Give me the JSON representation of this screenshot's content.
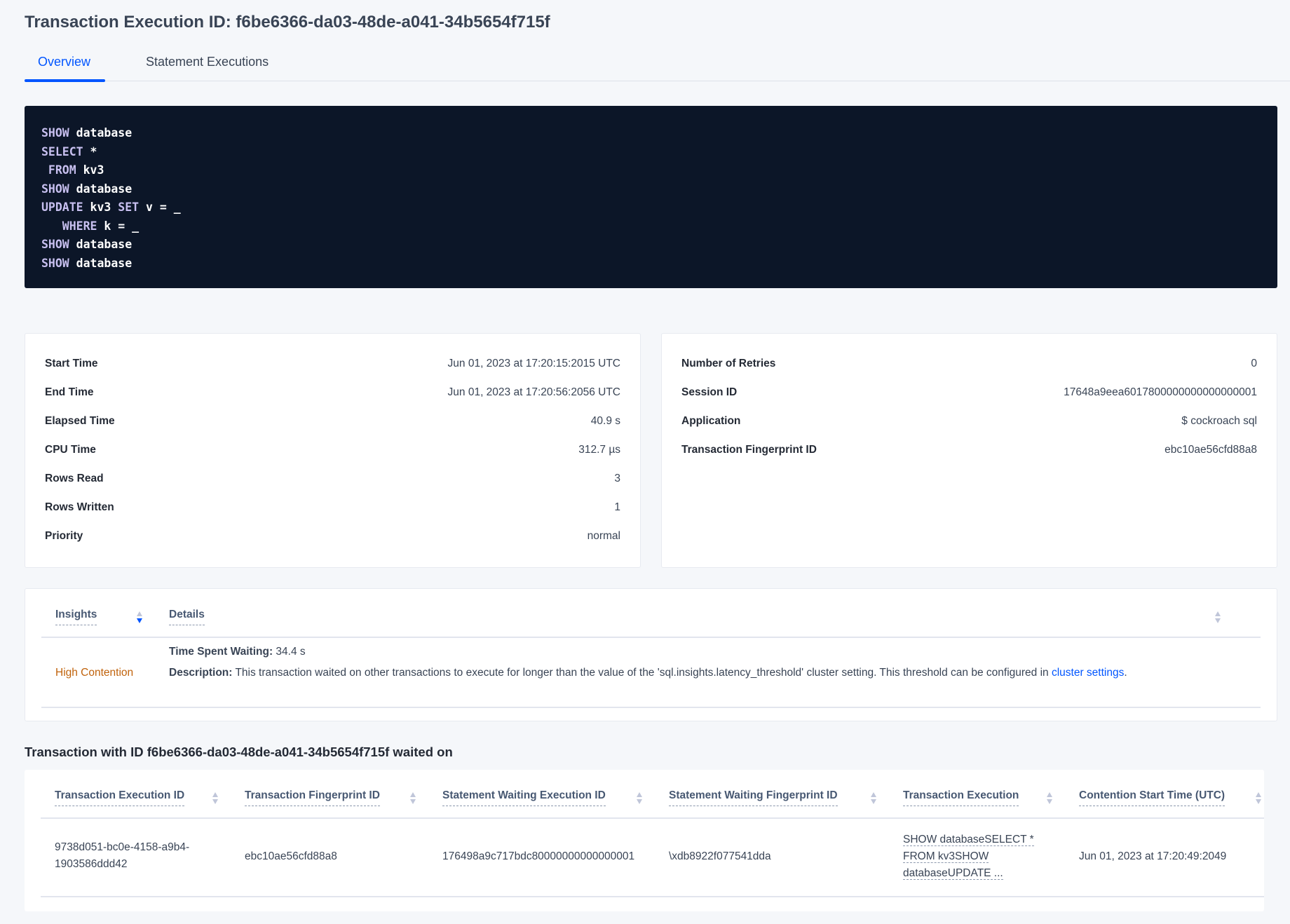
{
  "header": {
    "title": "Transaction Execution ID: f6be6366-da03-48de-a041-34b5654f715f"
  },
  "tabs": [
    {
      "label": "Overview",
      "active": true
    },
    {
      "label": "Statement Executions",
      "active": false
    }
  ],
  "sql": [
    {
      "kw": "SHOW",
      "rest": " database"
    },
    {
      "kw": "SELECT",
      "rest": " *"
    },
    {
      "kw": " FROM",
      "rest": " kv3"
    },
    {
      "kw": "SHOW",
      "rest": " database"
    },
    {
      "kw": "UPDATE",
      "rest": " kv3 ",
      "kw2": "SET",
      "rest2": " v = _"
    },
    {
      "kw": "   WHERE",
      "rest": " k = _"
    },
    {
      "kw": "SHOW",
      "rest": " database"
    },
    {
      "kw": "SHOW",
      "rest": " database"
    }
  ],
  "summary_left": [
    {
      "label": "Start Time",
      "value": "Jun 01, 2023 at 17:20:15:2015 UTC"
    },
    {
      "label": "End Time",
      "value": "Jun 01, 2023 at 17:20:56:2056 UTC"
    },
    {
      "label": "Elapsed Time",
      "value": "40.9 s"
    },
    {
      "label": "CPU Time",
      "value": "312.7 µs"
    },
    {
      "label": "Rows Read",
      "value": "3"
    },
    {
      "label": "Rows Written",
      "value": "1"
    },
    {
      "label": "Priority",
      "value": "normal"
    }
  ],
  "summary_right": [
    {
      "label": "Number of Retries",
      "value": "0"
    },
    {
      "label": "Session ID",
      "value": "17648a9eea6017800000000000000001"
    },
    {
      "label": "Application",
      "value": "$ cockroach sql"
    },
    {
      "label": "Transaction Fingerprint ID",
      "value": "ebc10ae56cfd88a8"
    }
  ],
  "insights": {
    "columns": [
      "Insights",
      "Details"
    ],
    "row": {
      "insight": "High Contention",
      "time_label": "Time Spent Waiting:",
      "time_value": " 34.4 s",
      "desc_label": "Description:",
      "desc_text": " This transaction waited on other transactions to execute for longer than the value of the 'sql.insights.latency_threshold' cluster setting. This threshold can be configured in ",
      "desc_link": "cluster settings",
      "desc_end": "."
    },
    "colors": {
      "insight": "#c0620b",
      "link": "#0055ff"
    }
  },
  "waited_on": {
    "title": "Transaction with ID f6be6366-da03-48de-a041-34b5654f715f waited on",
    "columns": [
      "Transaction Execution ID",
      "Transaction Fingerprint ID",
      "Statement Waiting Execution ID",
      "Statement Waiting Fingerprint ID",
      "Transaction Execution",
      "Contention Start Time (UTC)"
    ],
    "rows": [
      {
        "txn_exec_id_1": "9738d051-bc0e-4158-a9b4-",
        "txn_exec_id_2": "1903586ddd42",
        "txn_fp_id": "ebc10ae56cfd88a8",
        "stmt_exec_id": "176498a9c717bdc80000000000000001",
        "stmt_fp_id": "\\xdb8922f077541dda",
        "txn_exec_1": "SHOW databaseSELECT *",
        "txn_exec_2": "FROM kv3SHOW",
        "txn_exec_3": "databaseUPDATE ...",
        "start_time": "Jun 01, 2023 at 17:20:49:2049"
      }
    ]
  }
}
